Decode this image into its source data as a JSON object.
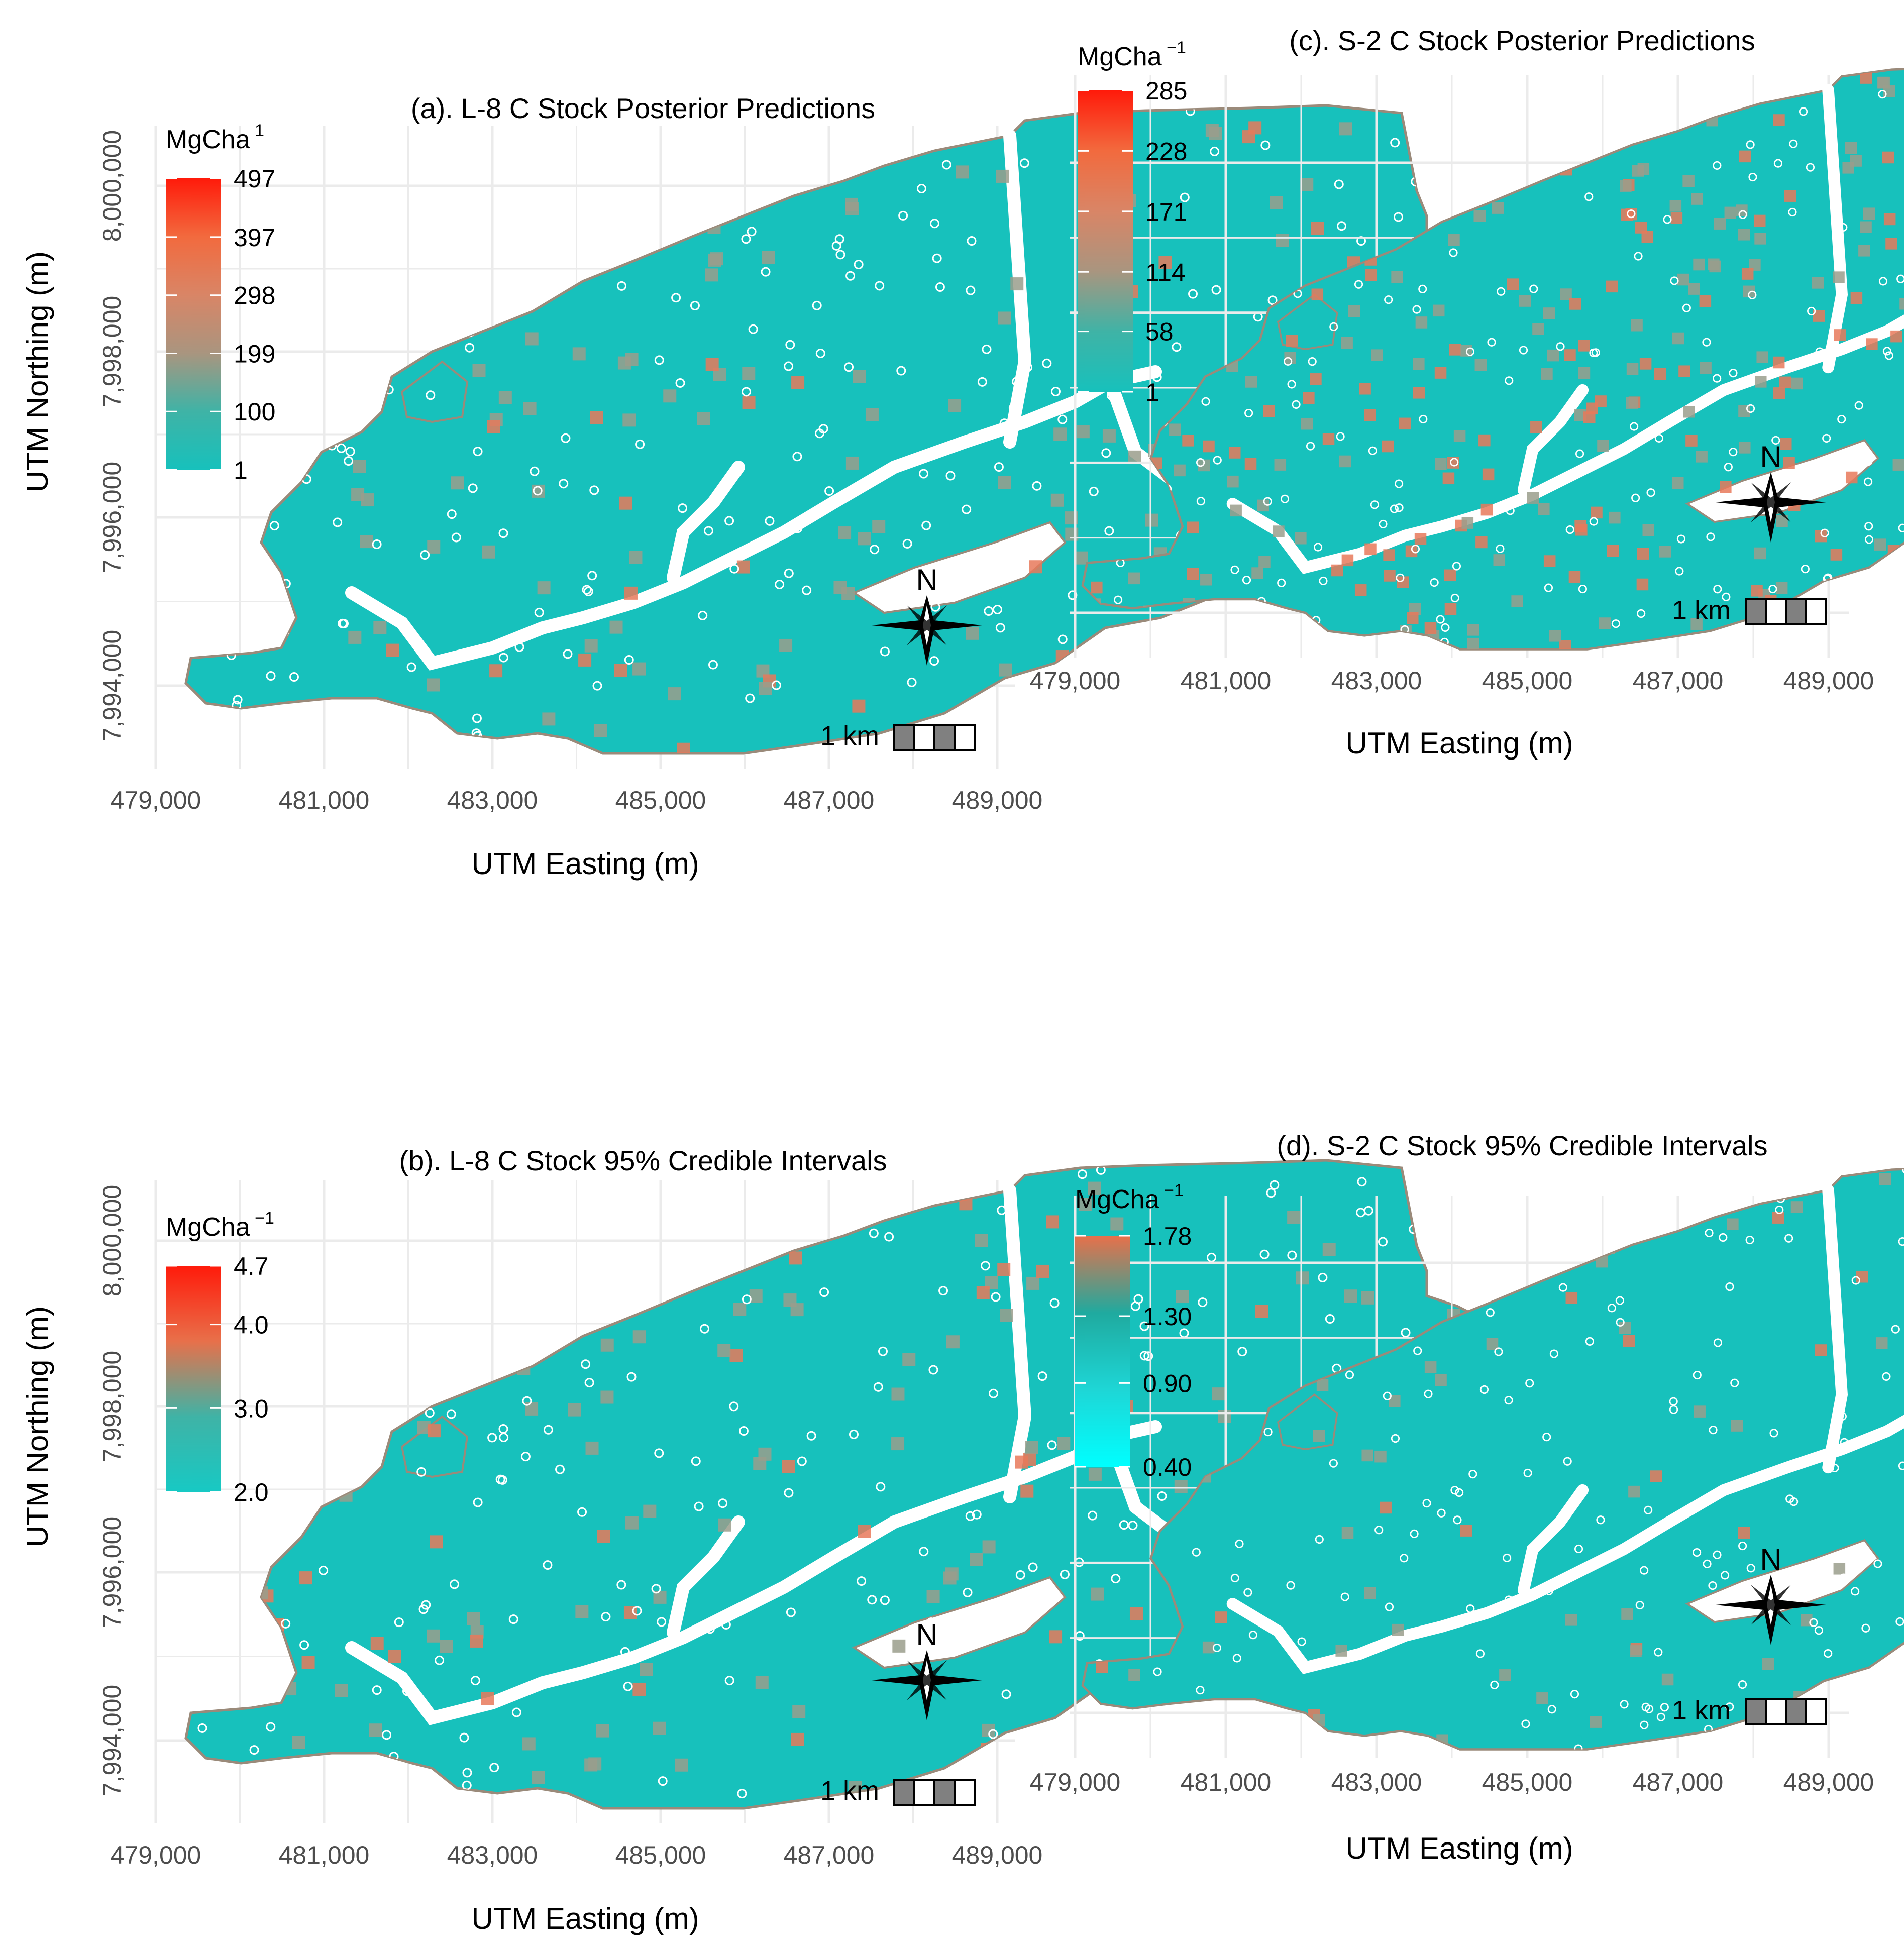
{
  "figure": {
    "panels": [
      {
        "id": "a",
        "title": "(a). L-8 C Stock Posterior Predictions",
        "legend": {
          "title": "MgCha",
          "title_sup": "1",
          "labels": [
            "497",
            "397",
            "298",
            "199",
            "100",
            "1"
          ],
          "values": [
            497,
            397,
            298,
            199,
            100,
            1
          ],
          "colors": [
            "#ff1a0a",
            "#f26a3e",
            "#d98566",
            "#a9957f",
            "#3fb3a6",
            "#17c1bc"
          ]
        },
        "x_ticks": [
          "479,000",
          "481,000",
          "483,000",
          "485,000",
          "487,000",
          "489,000"
        ],
        "y_ticks": [
          "7,994,000",
          "7,996,000",
          "7,998,000",
          "8,000,000"
        ],
        "xlabel": "UTM Easting (m)",
        "ylabel": "UTM Northing (m)",
        "north_label": "N",
        "scalebar_label": "1 km"
      },
      {
        "id": "c",
        "title": "(c). S-2 C Stock Posterior Predictions",
        "legend": {
          "title": "MgCha",
          "title_sup": "−1",
          "labels": [
            "285",
            "228",
            "171",
            "114",
            "58",
            "1"
          ],
          "values": [
            285,
            228,
            171,
            114,
            58,
            1
          ],
          "colors": [
            "#ff1a0a",
            "#f26a3e",
            "#d98566",
            "#a9957f",
            "#3fb3a6",
            "#17c1bc"
          ]
        },
        "x_ticks": [
          "479,000",
          "481,000",
          "483,000",
          "485,000",
          "487,000",
          "489,000"
        ],
        "y_ticks": [],
        "xlabel": "UTM Easting (m)",
        "ylabel": "",
        "north_label": "N",
        "scalebar_label": "1 km"
      },
      {
        "id": "b",
        "title": "(b). L-8 C Stock 95% Credible Intervals",
        "legend": {
          "title": "MgCha",
          "title_sup": "−1",
          "labels": [
            "4.7",
            "4.0",
            "3.0",
            "2.0"
          ],
          "values": [
            4.7,
            4.0,
            3.0,
            2.0
          ],
          "colors": [
            "#ff1a0a",
            "#e8704a",
            "#3fb3a6",
            "#17c9c4"
          ]
        },
        "x_ticks": [
          "479,000",
          "481,000",
          "483,000",
          "485,000",
          "487,000",
          "489,000"
        ],
        "y_ticks": [
          "7,994,000",
          "7,996,000",
          "7,998,000",
          "8,000,000"
        ],
        "xlabel": "UTM Easting (m)",
        "ylabel": "UTM Northing (m)",
        "north_label": "N",
        "scalebar_label": "1 km"
      },
      {
        "id": "d",
        "title": "(d). S-2 C Stock 95% Credible Intervals",
        "legend": {
          "title": "MgCha",
          "title_sup": "−1",
          "labels": [
            "1.78",
            "1.30",
            "0.90",
            "0.40"
          ],
          "values": [
            1.78,
            1.3,
            0.9,
            0.4
          ],
          "colors": [
            "#e8704a",
            "#1faa9f",
            "#1ed6d6",
            "#00ffff"
          ]
        },
        "x_ticks": [
          "479,000",
          "481,000",
          "483,000",
          "485,000",
          "487,000",
          "489,000"
        ],
        "y_ticks": [],
        "xlabel": "UTM Easting (m)",
        "ylabel": "",
        "north_label": "N",
        "scalebar_label": "1 km"
      }
    ],
    "colors": {
      "background": "#ffffff",
      "grid": "#ebebeb",
      "base_fill": "#17c1bc",
      "outline": "#9a8a7a",
      "cell_hot": "#e8795a",
      "cell_mid": "#9a9e8c",
      "points": "#ffffff"
    }
  }
}
